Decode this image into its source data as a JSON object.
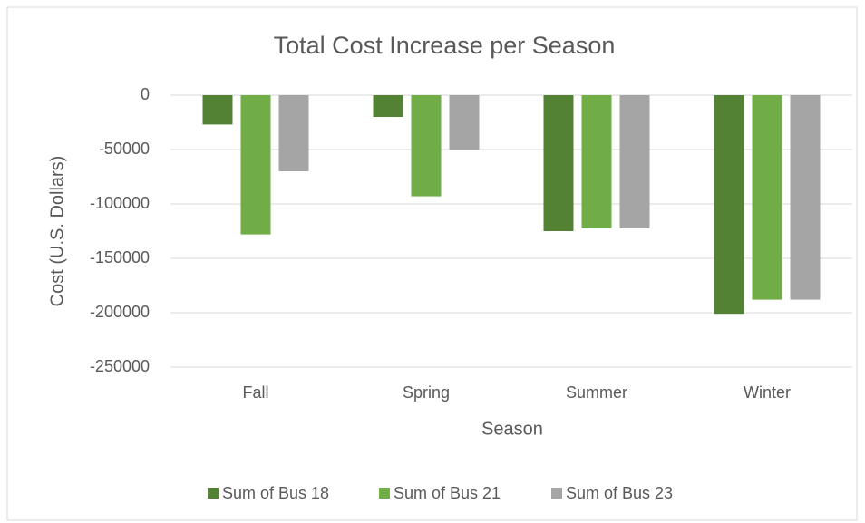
{
  "chart_data": {
    "type": "bar",
    "title": "Total Cost Increase per Season",
    "x_label": "Season",
    "y_label": "Cost (U.S. Dollars)",
    "categories": [
      "Fall",
      "Spring",
      "Summer",
      "Winter"
    ],
    "series": [
      {
        "name": "Sum of Bus 18",
        "color": "#548235",
        "values": [
          -27000,
          -20000,
          -125000,
          -201000
        ]
      },
      {
        "name": "Sum of Bus 21",
        "color": "#70ad47",
        "values": [
          -128000,
          -93000,
          -122500,
          -188000
        ]
      },
      {
        "name": "Sum of Bus 23",
        "color": "#a5a5a5",
        "values": [
          -70000,
          -50000,
          -122500,
          -188000
        ]
      }
    ],
    "ylim": [
      -250000,
      0
    ],
    "yticks": [
      0,
      -50000,
      -100000,
      -150000,
      -200000,
      -250000
    ],
    "grid": true,
    "legend": "bottom"
  }
}
